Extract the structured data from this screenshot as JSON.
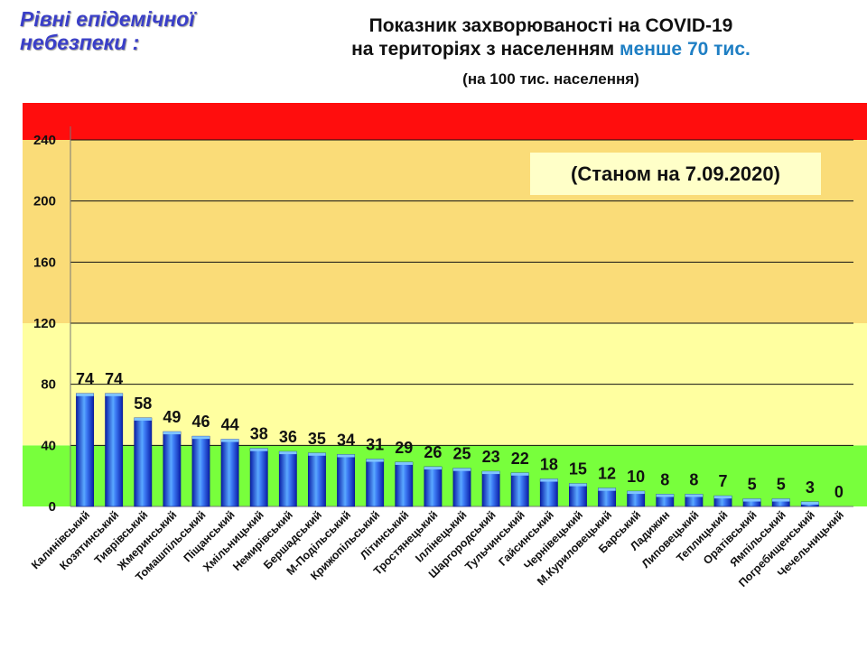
{
  "header": {
    "levels_title": "Рівні епідемічної небезпеки :",
    "title_line1": "Показник захворюваності на COVID-19",
    "title_line2_prefix": "на територіях з населенням ",
    "title_line2_highlight": "менше 70 тис.",
    "subtitle": "(на 100  тис. населення)",
    "date_note": "(Станом на 7.09.2020)"
  },
  "colors": {
    "red_zone": "#ff0d0d",
    "orange_zone": "#fadc78",
    "yellow_zone": "#ffffa0",
    "green_zone": "#78ff3c",
    "bar": "#1e46dc",
    "highlight_text": "#1f7fc4"
  },
  "chart_data": {
    "type": "bar",
    "title": "Показник захворюваності на COVID-19 на територіях з населенням менше 70 тис.",
    "subtitle": "(на 100  тис. населення)",
    "categories": [
      "Калинівський",
      "Козятинський",
      "Тиврівський",
      "Жмеринський",
      "Томашпільський",
      "Піщанський",
      "Хмільницький",
      "Немирівський",
      "Бершадський",
      "М-Подільський",
      "Крижопільський",
      "Літинський",
      "Тростянецький",
      "Іллінецький",
      "Шаргородський",
      "Тульчинський",
      "Гайсинський",
      "Чернівецький",
      "М.Куриловецький",
      "Барський",
      "Ладижин",
      "Липовецький",
      "Теплицький",
      "Оратівський",
      "Ямпільський",
      "Погребищенський",
      "Чечельницький"
    ],
    "values": [
      74,
      74,
      58,
      49,
      46,
      44,
      38,
      36,
      35,
      34,
      31,
      29,
      26,
      25,
      23,
      22,
      18,
      15,
      12,
      10,
      8,
      8,
      7,
      5,
      5,
      3,
      0
    ],
    "yticks": [
      0,
      40,
      80,
      120,
      160,
      200,
      240
    ],
    "ylim": [
      0,
      240
    ],
    "grid": true,
    "legend": "none",
    "zones": [
      {
        "name": "green",
        "from": 0,
        "to": 40
      },
      {
        "name": "yellow",
        "from": 40,
        "to": 120
      },
      {
        "name": "orange",
        "from": 120,
        "to": 240
      },
      {
        "name": "red",
        "from": 240,
        "to": null
      }
    ]
  }
}
